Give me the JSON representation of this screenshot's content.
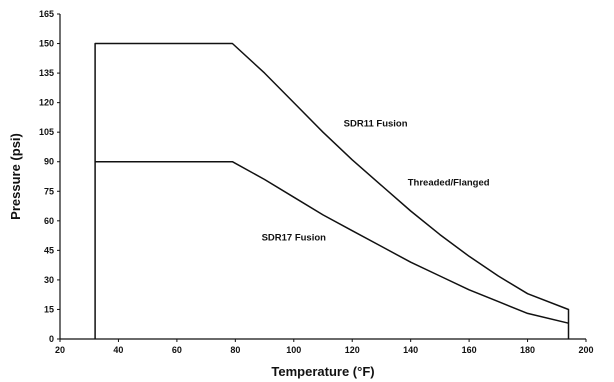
{
  "chart_data": {
    "type": "line",
    "xlabel": "Temperature (°F)",
    "ylabel": "Pressure (psi)",
    "xlim": [
      20,
      200
    ],
    "ylim": [
      0,
      165
    ],
    "xticks": [
      20,
      40,
      60,
      80,
      100,
      120,
      140,
      160,
      180,
      200
    ],
    "yticks": [
      0,
      15,
      30,
      45,
      60,
      75,
      90,
      105,
      120,
      135,
      150,
      165
    ],
    "grid": false,
    "series": [
      {
        "name": "SDR11 Fusion",
        "points": [
          [
            32,
            0
          ],
          [
            32,
            150
          ],
          [
            79,
            150
          ],
          [
            90,
            135
          ],
          [
            100,
            120
          ],
          [
            110,
            105
          ],
          [
            120,
            91
          ],
          [
            130,
            78
          ],
          [
            140,
            65
          ],
          [
            150,
            53
          ],
          [
            160,
            42
          ],
          [
            170,
            32
          ],
          [
            180,
            23
          ],
          [
            194,
            15
          ],
          [
            194,
            0
          ]
        ]
      },
      {
        "name": "SDR17 Fusion",
        "points": [
          [
            32,
            90
          ],
          [
            79,
            90
          ],
          [
            90,
            81
          ],
          [
            100,
            72
          ],
          [
            110,
            63
          ],
          [
            120,
            55
          ],
          [
            130,
            47
          ],
          [
            140,
            39
          ],
          [
            150,
            32
          ],
          [
            160,
            25
          ],
          [
            170,
            19
          ],
          [
            180,
            13
          ],
          [
            194,
            8
          ]
        ]
      }
    ],
    "annotations": [
      {
        "text": "SDR11 Fusion",
        "x": 128,
        "y": 108
      },
      {
        "text": "Threaded/Flanged",
        "x": 153,
        "y": 78
      },
      {
        "text": "SDR17 Fusion",
        "x": 100,
        "y": 50
      }
    ]
  }
}
